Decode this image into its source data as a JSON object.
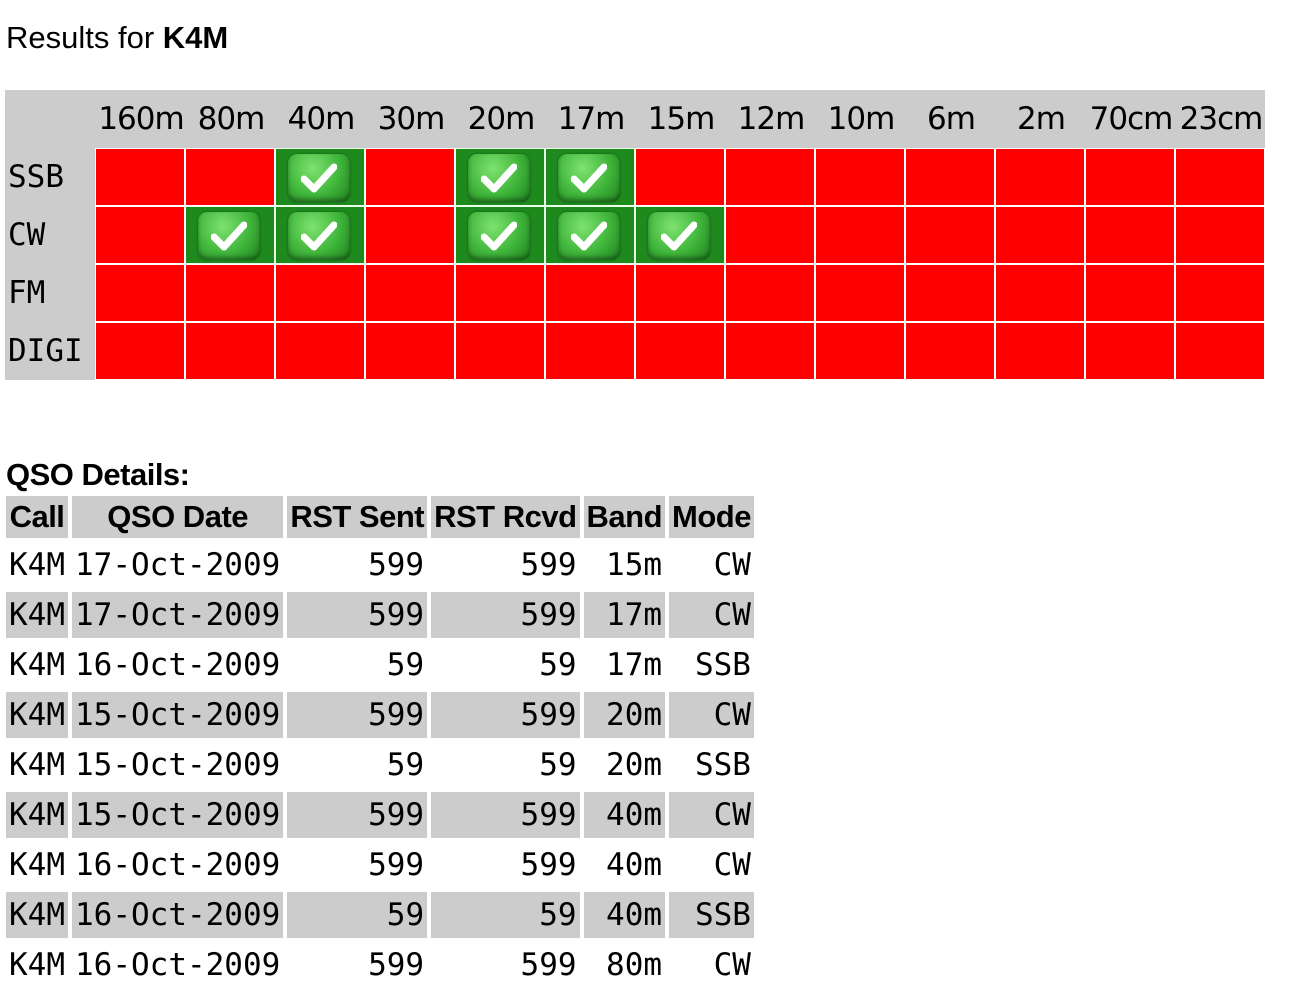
{
  "results": {
    "prefix": "Results for",
    "call": "K4M"
  },
  "grid": {
    "bands": [
      "160m",
      "80m",
      "40m",
      "30m",
      "20m",
      "17m",
      "15m",
      "12m",
      "10m",
      "6m",
      "2m",
      "70cm",
      "23cm"
    ],
    "modes": [
      {
        "label": "SSB",
        "worked": [
          false,
          false,
          true,
          false,
          true,
          true,
          false,
          false,
          false,
          false,
          false,
          false,
          false
        ]
      },
      {
        "label": "CW",
        "worked": [
          false,
          true,
          true,
          false,
          true,
          true,
          true,
          false,
          false,
          false,
          false,
          false,
          false
        ]
      },
      {
        "label": "FM",
        "worked": [
          false,
          false,
          false,
          false,
          false,
          false,
          false,
          false,
          false,
          false,
          false,
          false,
          false
        ]
      },
      {
        "label": "DIGI",
        "worked": [
          false,
          false,
          false,
          false,
          false,
          false,
          false,
          false,
          false,
          false,
          false,
          false,
          false
        ]
      }
    ],
    "colors": {
      "worked": "#1e8a1e",
      "not_worked": "#ff0000",
      "header_bg": "#cccccc"
    },
    "worked_icon": "check-mark-icon"
  },
  "qso": {
    "heading": "QSO Details:",
    "columns": [
      "Call",
      "QSO Date",
      "RST Sent",
      "RST Rcvd",
      "Band",
      "Mode"
    ],
    "rows": [
      [
        "K4M",
        "17-Oct-2009",
        "599",
        "599",
        "15m",
        "CW"
      ],
      [
        "K4M",
        "17-Oct-2009",
        "599",
        "599",
        "17m",
        "CW"
      ],
      [
        "K4M",
        "16-Oct-2009",
        "59",
        "59",
        "17m",
        "SSB"
      ],
      [
        "K4M",
        "15-Oct-2009",
        "599",
        "599",
        "20m",
        "CW"
      ],
      [
        "K4M",
        "15-Oct-2009",
        "59",
        "59",
        "20m",
        "SSB"
      ],
      [
        "K4M",
        "15-Oct-2009",
        "599",
        "599",
        "40m",
        "CW"
      ],
      [
        "K4M",
        "16-Oct-2009",
        "599",
        "599",
        "40m",
        "CW"
      ],
      [
        "K4M",
        "16-Oct-2009",
        "59",
        "59",
        "40m",
        "SSB"
      ],
      [
        "K4M",
        "16-Oct-2009",
        "599",
        "599",
        "80m",
        "CW"
      ]
    ]
  }
}
